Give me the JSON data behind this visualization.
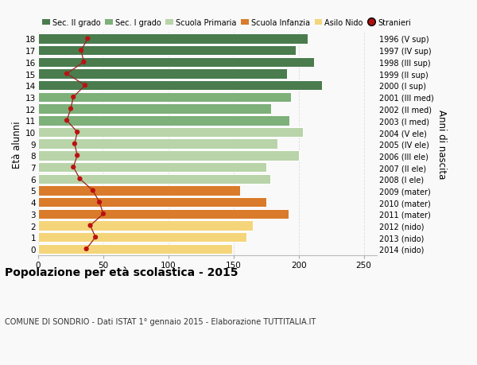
{
  "ages": [
    18,
    17,
    16,
    15,
    14,
    13,
    12,
    11,
    10,
    9,
    8,
    7,
    6,
    5,
    4,
    3,
    2,
    1,
    0
  ],
  "bar_values": [
    207,
    198,
    212,
    191,
    218,
    194,
    179,
    193,
    203,
    184,
    200,
    175,
    178,
    155,
    175,
    192,
    165,
    160,
    149
  ],
  "bar_colors": [
    "#4a7c4e",
    "#4a7c4e",
    "#4a7c4e",
    "#4a7c4e",
    "#4a7c4e",
    "#7eb07a",
    "#7eb07a",
    "#7eb07a",
    "#b8d4a8",
    "#b8d4a8",
    "#b8d4a8",
    "#b8d4a8",
    "#b8d4a8",
    "#d97b2a",
    "#d97b2a",
    "#d97b2a",
    "#f5d57a",
    "#f5d57a",
    "#f5d57a"
  ],
  "stranieri_values": [
    38,
    33,
    35,
    22,
    36,
    27,
    25,
    22,
    30,
    28,
    30,
    27,
    32,
    42,
    47,
    50,
    40,
    44,
    37
  ],
  "right_labels": [
    "1996 (V sup)",
    "1997 (IV sup)",
    "1998 (III sup)",
    "1999 (II sup)",
    "2000 (I sup)",
    "2001 (III med)",
    "2002 (II med)",
    "2003 (I med)",
    "2004 (V ele)",
    "2005 (IV ele)",
    "2006 (III ele)",
    "2007 (II ele)",
    "2008 (I ele)",
    "2009 (mater)",
    "2010 (mater)",
    "2011 (mater)",
    "2012 (nido)",
    "2013 (nido)",
    "2014 (nido)"
  ],
  "legend_labels": [
    "Sec. II grado",
    "Sec. I grado",
    "Scuola Primaria",
    "Scuola Infanzia",
    "Asilo Nido",
    "Stranieri"
  ],
  "legend_colors": [
    "#4a7c4e",
    "#7eb07a",
    "#b8d4a8",
    "#d97b2a",
    "#f5d57a",
    "#aa1111"
  ],
  "ylabel_left": "Età alunni",
  "ylabel_right": "Anni di nascita",
  "title": "Popolazione per età scolastica - 2015",
  "subtitle": "COMUNE DI SONDRIO - Dati ISTAT 1° gennaio 2015 - Elaborazione TUTTITALIA.IT",
  "xlim": [
    0,
    260
  ],
  "xticks": [
    0,
    50,
    100,
    150,
    200,
    250
  ],
  "bar_height": 0.85,
  "bg_color": "#f9f9f9",
  "grid_color": "#dddddd",
  "stranieri_line_color": "#9b2020",
  "stranieri_dot_color": "#bb1111"
}
